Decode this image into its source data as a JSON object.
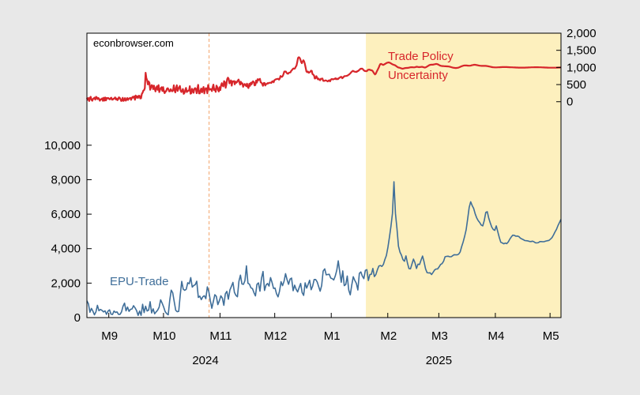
{
  "credit": "econbrowser.com",
  "colors": {
    "page_background": "#e8e8e8",
    "plot_background": "#ffffff",
    "shade": "#fdf0be",
    "tpu": "#d7262b",
    "epu": "#3f6e99",
    "marker": "#f2a46a"
  },
  "chart_data": {
    "type": "line",
    "title": "",
    "grid": false,
    "x_range": [
      "2024-08-20",
      "2025-05-07"
    ],
    "x_ticks": [
      {
        "label": "M9",
        "date": "2024-09-01"
      },
      {
        "label": "M10",
        "date": "2024-10-01"
      },
      {
        "label": "M11",
        "date": "2024-11-01"
      },
      {
        "label": "M12",
        "date": "2024-12-01"
      },
      {
        "label": "M1",
        "date": "2025-01-01"
      },
      {
        "label": "M2",
        "date": "2025-02-01"
      },
      {
        "label": "M3",
        "date": "2025-03-01"
      },
      {
        "label": "M4",
        "date": "2025-04-01"
      },
      {
        "label": "M5",
        "date": "2025-05-01"
      }
    ],
    "year_labels": [
      {
        "label": "2024",
        "date": "2024-10-24"
      },
      {
        "label": "2025",
        "date": "2025-03-01"
      }
    ],
    "shaded_region": {
      "start": "2025-01-20",
      "end": "2025-05-07"
    },
    "vertical_line": {
      "date": "2024-10-26",
      "style": "dashed"
    },
    "left_axis": {
      "range": [
        0,
        16500
      ],
      "ticks": [
        0,
        2000,
        4000,
        6000,
        8000,
        10000
      ],
      "tick_labels": [
        "0",
        "2,000",
        "4,000",
        "6,000",
        "8,000",
        "10,000"
      ]
    },
    "right_axis": {
      "range": [
        -6300,
        2000
      ],
      "ticks": [
        0,
        500,
        1000,
        1500,
        2000
      ],
      "tick_labels": [
        "0",
        "500",
        "1,000",
        "1,500",
        "2,000"
      ]
    },
    "annotations": [
      {
        "text": "Trade Policy",
        "series": "tpu"
      },
      {
        "text": "Uncertainty",
        "series": "tpu"
      },
      {
        "text": "EPU-Trade",
        "series": "epu"
      }
    ],
    "series": [
      {
        "id": "tpu",
        "axis": "right",
        "start": "2024-08-20",
        "end": "2025-05-07",
        "values": [
          116,
          56,
          106,
          20,
          114,
          144,
          54,
          29,
          80,
          97,
          117,
          62,
          143,
          128,
          74,
          109,
          79,
          28,
          70,
          68,
          98,
          26,
          117,
          31,
          123,
          38,
          109,
          95,
          109,
          84,
          68,
          102,
          116,
          58,
          63,
          92,
          94,
          126,
          66,
          96,
          44,
          69,
          127,
          113,
          82,
          21,
          30,
          115,
          25,
          50,
          107,
          30,
          59,
          107,
          52,
          93,
          101,
          112,
          53,
          111,
          141,
          118,
          155,
          56,
          180,
          118,
          157,
          109,
          174,
          175,
          96,
          101,
          227,
          260,
          324,
          336,
          392,
          846,
          692,
          631,
          503,
          591,
          549,
          347,
          409,
          486,
          466,
          366,
          468,
          373,
          300,
          410,
          451,
          347,
          485,
          279,
          354,
          398,
          423,
          315,
          426,
          303,
          249,
          302,
          303,
          380,
          396,
          361,
          301,
          305,
          365,
          324,
          303,
          330,
          478,
          330,
          271,
          407,
          481,
          315,
          378,
          418,
          461,
          327,
          283,
          322,
          371,
          230,
          257,
          336,
          403,
          282,
          303,
          326,
          323,
          452,
          233,
          251,
          377,
          324,
          261,
          376,
          397,
          373,
          248,
          390,
          493,
          243,
          242,
          322,
          387,
          273,
          348,
          430,
          240,
          357,
          396,
          389,
          246,
          488,
          399,
          351,
          369,
          369,
          311,
          425,
          499,
          339,
          368,
          286,
          472,
          421,
          342,
          299,
          423,
          337,
          479,
          541,
          472,
          449,
          601,
          574,
          408,
          502,
          661,
          703,
          670,
          536,
          577,
          622,
          470,
          593,
          591,
          600,
          506,
          586,
          554,
          574,
          618,
          646,
          574,
          499,
          581,
          525,
          535,
          434,
          491,
          517,
          485,
          456,
          527,
          430,
          399,
          521,
          462,
          552,
          508,
          573,
          595,
          568,
          475,
          488,
          616,
          557,
          659,
          627,
          653,
          667,
          566,
          554,
          517,
          465,
          546,
          548,
          474,
          516,
          518,
          543,
          534,
          551,
          551,
          557,
          547,
          590,
          599,
          566,
          627,
          644,
          654,
          660,
          666,
          669,
          644,
          677,
          750,
          727,
          725,
          752,
          813,
          879,
          881,
          880,
          845,
          820,
          817,
          844,
          851,
          854,
          898,
          923,
          954,
          971,
          962,
          970,
          1021,
          1056,
          1156,
          1278,
          1300,
          1286,
          1238,
          1160,
          1123,
          1174,
          1209,
          1176,
          1096,
          997,
          884,
          864,
          881,
          845,
          857,
          872,
          906,
          900,
          808,
          790,
          764,
          677,
          683,
          745,
          705,
          654,
          674,
          641,
          629,
          669,
          671,
          676,
          613,
          604,
          612,
          624,
          620,
          603,
          592,
          616,
          625,
          594,
          643,
          661,
          660,
          649,
          660,
          666,
          684,
          656,
          675,
          656,
          669,
          698,
          704,
          724,
          726,
          683,
          705,
          727,
          747,
          747,
          751,
          758,
          761,
          783,
          791,
          814,
          839,
          865,
          883,
          902,
          886,
          879,
          872,
          873,
          869,
          893,
          897,
          922,
          938,
          963,
          962,
          968,
          950,
          920,
          905,
          892,
          899,
          888,
          908,
          934,
          932,
          937,
          922,
          922,
          912,
          893,
          857,
          821,
          797,
          818,
          868,
          911,
          956,
          1001,
          1059,
          1099,
          1103,
          1095,
          1080,
          1073,
          1087,
          1101,
          1113,
          1128,
          1138,
          1143,
          1146,
          1141,
          1131,
          1117,
          1102,
          1090,
          1082,
          1074,
          1066,
          1053,
          1036,
          1019,
          1005,
          997,
          992,
          986,
          977,
          969,
          963,
          966,
          972,
          980,
          984,
          985,
          986,
          987,
          991,
          997,
          1002,
          1006,
          1007,
          1006,
          1003,
          1002,
          1005,
          1011,
          1017,
          1019,
          1016,
          1011,
          1009,
          1010,
          1014,
          1017,
          1017,
          1011,
          1003,
          998,
          1000,
          1009,
          1022,
          1036,
          1050,
          1063,
          1073,
          1078,
          1079,
          1079,
          1081,
          1086,
          1092,
          1097,
          1101,
          1101,
          1095,
          1085,
          1072,
          1060,
          1051,
          1045,
          1042,
          1040,
          1039,
          1037,
          1035,
          1033,
          1032,
          1031,
          1029,
          1026,
          1021,
          1015,
          1008,
          1001,
          996,
          991,
          987,
          985,
          984,
          985,
          988,
          993,
          1000,
          1009,
          1019,
          1029,
          1038,
          1046,
          1052,
          1056,
          1058,
          1058,
          1057,
          1055,
          1053,
          1051,
          1051,
          1053,
          1057,
          1063,
          1069,
          1074,
          1077,
          1077,
          1075,
          1071,
          1066,
          1061,
          1056,
          1052,
          1049,
          1047,
          1046,
          1046,
          1046,
          1046,
          1046,
          1045,
          1043,
          1040,
          1037,
          1032,
          1027,
          1022,
          1017,
          1012,
          1008,
          1005,
          1003,
          1002,
          1001,
          1001,
          1002,
          1003,
          1004,
          1006,
          1007,
          1008,
          1009,
          1010,
          1010,
          1010,
          1010,
          1010,
          1010,
          1010,
          1009,
          1008,
          1007,
          1006,
          1005,
          1004,
          1003,
          1002,
          1001,
          1000,
          999,
          998,
          997,
          996,
          995,
          995,
          994,
          994,
          994,
          994,
          994,
          994,
          995,
          995,
          996,
          997,
          998,
          999,
          1000,
          1001,
          1002,
          1003,
          1004,
          1005,
          1005,
          1006,
          1006,
          1006,
          1006,
          1006,
          1006,
          1005,
          1005,
          1004,
          1003,
          1002,
          1001,
          1000,
          999,
          998,
          997,
          996,
          995,
          994,
          993,
          993,
          992,
          992,
          992,
          992,
          992,
          992,
          993,
          993,
          994,
          995,
          996,
          997,
          998,
          999,
          1000
        ]
      },
      {
        "id": "epu",
        "axis": "left",
        "start": "2024-08-20",
        "end": "2025-05-07",
        "values": [
          970,
          800,
          310,
          530,
          370,
          160,
          330,
          710,
          400,
          470,
          420,
          330,
          390,
          190,
          370,
          450,
          200,
          180,
          380,
          300,
          330,
          190,
          190,
          330,
          660,
          840,
          390,
          610,
          360,
          480,
          500,
          690,
          560,
          400,
          130,
          380,
          130,
          770,
          290,
          660,
          380,
          430,
          920,
          270,
          510,
          220,
          330,
          430,
          600,
          1030,
          840,
          620,
          350,
          230,
          160,
          990,
          1590,
          1440,
          920,
          420,
          340,
          360,
          1300,
          2100,
          1650,
          1580,
          1640,
          2020,
          1960,
          2320,
          1770,
          1860,
          1910,
          2110,
          1170,
          1240,
          1040,
          1210,
          1270,
          1100,
          1780,
          1510,
          990,
          540,
          930,
          1330,
          1230,
          750,
          970,
          1260,
          1130,
          710,
          1380,
          1520,
          1070,
          1610,
          1810,
          2040,
          1460,
          1290,
          1210,
          2110,
          2460,
          1950,
          1930,
          2140,
          3000,
          1990,
          1940,
          1730,
          1680,
          1450,
          1260,
          1930,
          2010,
          1530,
          2290,
          2670,
          1570,
          1890,
          1980,
          1830,
          2320,
          2040,
          1690,
          1710,
          1380,
          1200,
          1540,
          2080,
          1850,
          2110,
          2550,
          2200,
          1930,
          2230,
          2290,
          1560,
          1880,
          1640,
          1490,
          1740,
          1980,
          1450,
          1290,
          2010,
          1710,
          1930,
          2170,
          1620,
          1830,
          2210,
          2210,
          2070,
          1800,
          1530,
          1860,
          2700,
          2830,
          2480,
          2500,
          2510,
          2290,
          2260,
          2180,
          2410,
          2740,
          3290,
          2650,
          2050,
          2710,
          1850,
          1920,
          2410,
          1590,
          1320,
          1890,
          2370,
          2160,
          1990,
          1600,
          2560,
          2650,
          2400,
          2260,
          2740,
          2780,
          2150,
          2500,
          2510,
          2850,
          2380,
          2500,
          2770,
          2990,
          3020,
          2970,
          3080,
          3370,
          3600,
          4090,
          4670,
          5300,
          6040,
          7880,
          6040,
          5170,
          4140,
          3800,
          3620,
          3360,
          3270,
          3580,
          3160,
          2840,
          2830,
          3110,
          3390,
          3180,
          2850,
          3100,
          3080,
          3330,
          3570,
          3230,
          2830,
          2610,
          2590,
          2600,
          2500,
          2620,
          2760,
          2820,
          2820,
          2940,
          3080,
          3130,
          3270,
          3530,
          3550,
          3560,
          3530,
          3530,
          3590,
          3650,
          3640,
          3640,
          3680,
          3810,
          4120,
          4390,
          4720,
          5100,
          5730,
          6390,
          6720,
          6500,
          6330,
          6020,
          5790,
          5630,
          5520,
          5370,
          5320,
          5630,
          6100,
          6140,
          5760,
          5490,
          5250,
          5110,
          5060,
          5320,
          4980,
          4650,
          4370,
          4330,
          4280,
          4320,
          4290,
          4390,
          4550,
          4680,
          4780,
          4770,
          4720,
          4730,
          4700,
          4610,
          4560,
          4520,
          4470,
          4460,
          4450,
          4420,
          4410,
          4430,
          4400,
          4340,
          4330,
          4350,
          4410,
          4410,
          4400,
          4410,
          4440,
          4460,
          4480,
          4550,
          4640,
          4790,
          4970,
          5120,
          5340,
          5520,
          5700
        ]
      }
    ]
  }
}
